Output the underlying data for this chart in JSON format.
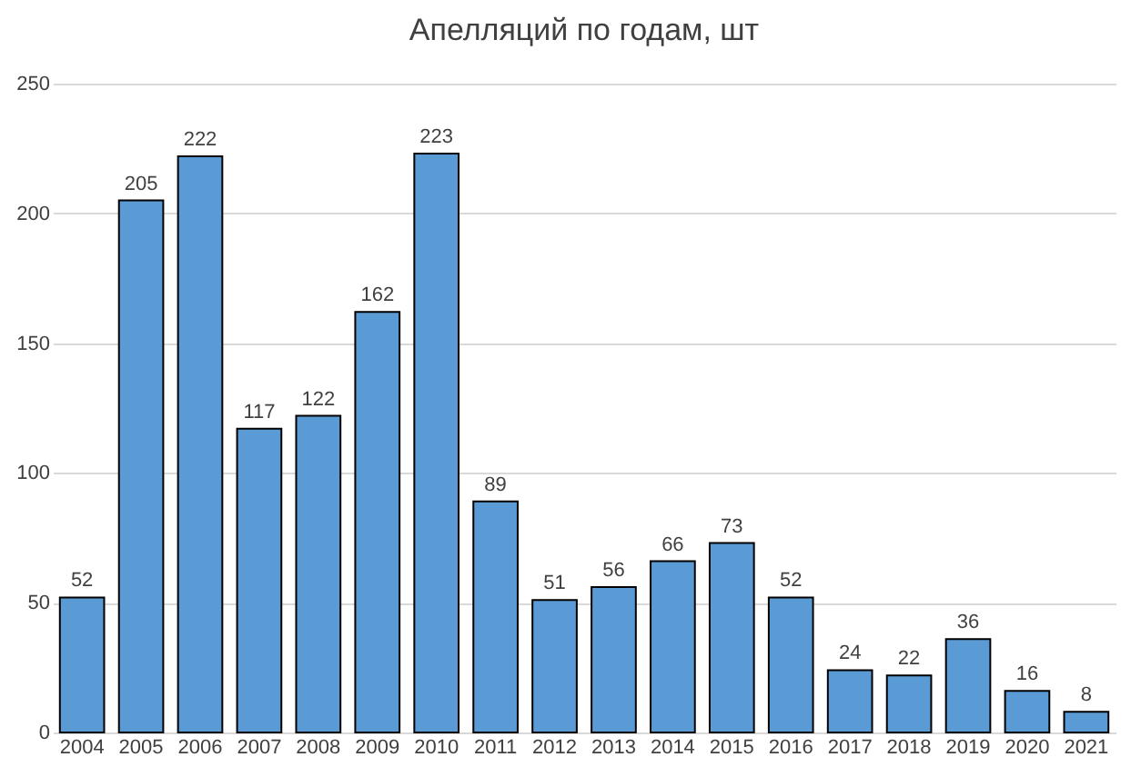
{
  "chart_data": {
    "type": "bar",
    "title": "Апелляций по годам, шт",
    "categories": [
      "2004",
      "2005",
      "2006",
      "2007",
      "2008",
      "2009",
      "2010",
      "2011",
      "2012",
      "2013",
      "2014",
      "2015",
      "2016",
      "2017",
      "2018",
      "2019",
      "2020",
      "2021"
    ],
    "values": [
      52,
      205,
      222,
      117,
      122,
      162,
      223,
      89,
      51,
      56,
      66,
      73,
      52,
      24,
      22,
      36,
      16,
      8
    ],
    "color": "#5b9bd5",
    "ylim": [
      0,
      250
    ],
    "yticks": [
      0,
      50,
      100,
      150,
      200,
      250
    ],
    "grid": "y",
    "data_labels": true
  }
}
